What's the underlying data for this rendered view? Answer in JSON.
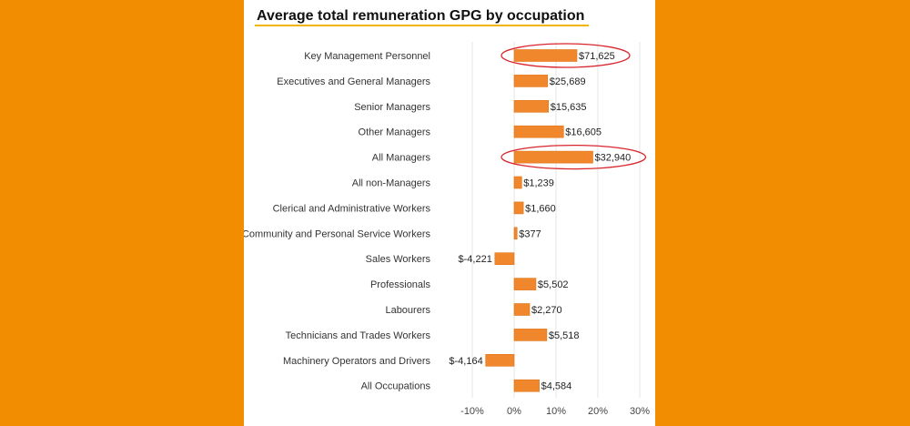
{
  "chart_data": {
    "type": "bar",
    "orientation": "horizontal",
    "title": "Average total remuneration GPG by occupation",
    "categories": [
      "Key Management Personnel",
      "Executives and General Managers",
      "Senior Managers",
      "Other Managers",
      "All Managers",
      "All non-Managers",
      "Clerical and Administrative Workers",
      "Community and Personal Service Workers",
      "Sales Workers",
      "Professionals",
      "Labourers",
      "Technicians and Trades Workers",
      "Machinery Operators and Drivers",
      "All Occupations"
    ],
    "values": [
      15.0,
      8.0,
      8.2,
      11.8,
      18.8,
      1.8,
      2.2,
      0.7,
      -4.6,
      5.2,
      3.7,
      7.8,
      -6.8,
      6.0
    ],
    "value_labels": [
      "$71,625",
      "$25,689",
      "$15,635",
      "$16,605",
      "$32,940",
      "$1,239",
      "$1,660",
      "$377",
      "$-4,221",
      "$5,502",
      "$2,270",
      "$5,518",
      "$-4,164",
      "$4,584"
    ],
    "x_ticks": [
      "-10%",
      "0%",
      "10%",
      "20%",
      "30%"
    ],
    "x_tick_values": [
      -10,
      0,
      10,
      20,
      30
    ],
    "xlim": [
      -18.5,
      30
    ],
    "grid": true,
    "highlighted": [
      "Key Management Personnel",
      "All Managers"
    ],
    "colors": {
      "bar": "#F0872D",
      "bar_edge": "#E07414",
      "highlight": "#D9262E",
      "grid": "#E6E6E6",
      "title_underline": "#F2B600",
      "background": "#F28C00"
    }
  }
}
